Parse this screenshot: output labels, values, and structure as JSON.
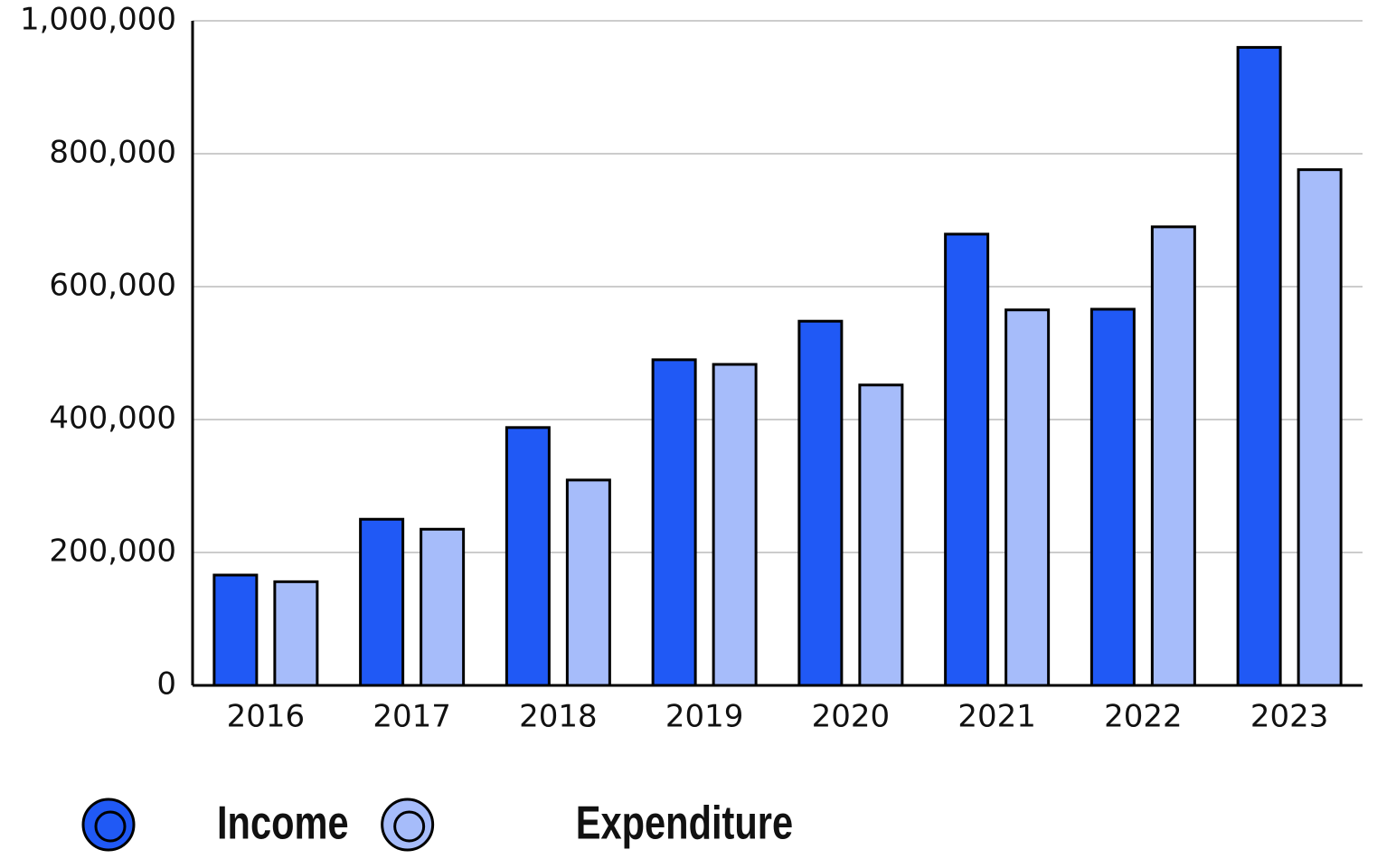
{
  "chart_data": {
    "type": "bar",
    "categories": [
      "2016",
      "2017",
      "2018",
      "2019",
      "2020",
      "2021",
      "2022",
      "2023"
    ],
    "series": [
      {
        "name": "Income",
        "color": "#2059f5",
        "values": [
          166000,
          250000,
          388000,
          490000,
          548000,
          679000,
          566000,
          960000
        ]
      },
      {
        "name": "Expenditure",
        "color": "#a6bcfa",
        "values": [
          156000,
          235000,
          309000,
          483000,
          452000,
          565000,
          690000,
          776000
        ]
      }
    ],
    "ylim": [
      0,
      1000000
    ],
    "yticks": [
      0,
      {
        "value": 200000,
        "label": "200,000"
      },
      {
        "value": 400000,
        "label": "400,000"
      },
      {
        "value": 600000,
        "label": "600,000"
      },
      {
        "value": 800000,
        "label": "800,000"
      },
      {
        "value": 1000000,
        "label": "1,000,000"
      }
    ],
    "grid": true,
    "legend": "bottom-left"
  }
}
